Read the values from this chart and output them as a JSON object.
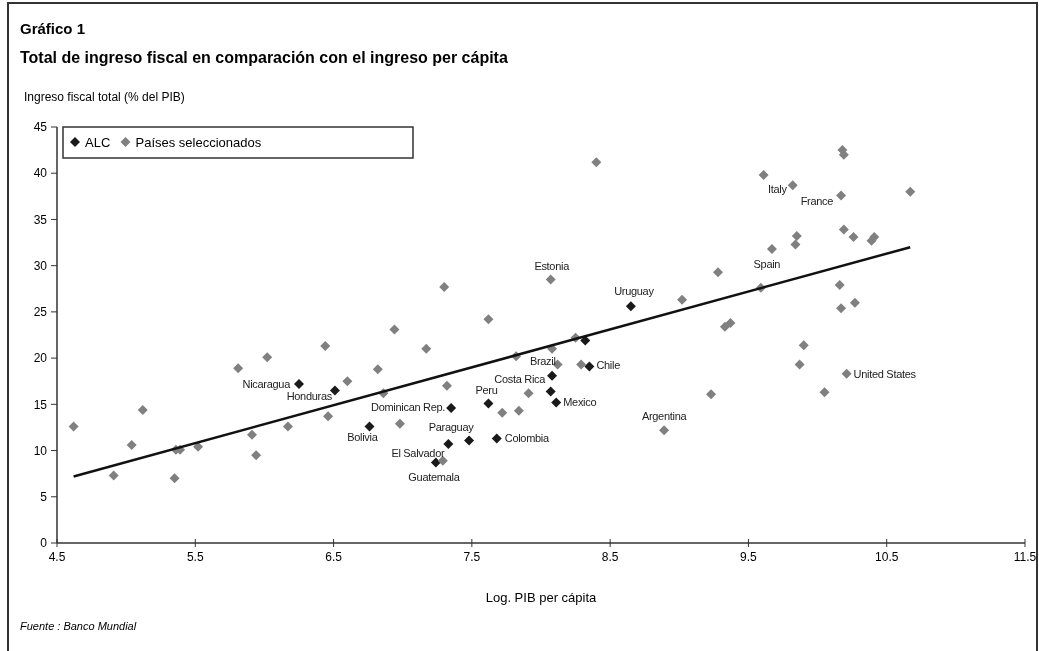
{
  "chart_data": {
    "type": "scatter",
    "title": "Gráfico 1",
    "subtitle": "Total de ingreso fiscal en comparación con el ingreso per cápita",
    "xlabel": "Log. PIB per cápita",
    "ylabel": "Ingreso fiscal total  (% del PIB)",
    "xlim": [
      4.5,
      11.5
    ],
    "xticks": [
      4.5,
      5.5,
      6.5,
      7.5,
      8.5,
      9.5,
      10.5,
      11.5
    ],
    "ylim": [
      0,
      45
    ],
    "yticks": [
      0,
      5,
      10,
      15,
      20,
      25,
      30,
      35,
      40,
      45
    ],
    "grid": false,
    "legend": "top left",
    "marker": "diamond",
    "series": [
      {
        "name": "ALC",
        "color": "#1a1a1a",
        "x": [
          6.25,
          6.51,
          6.76,
          7.35,
          7.33,
          7.48,
          7.24,
          7.62,
          7.68,
          8.08,
          8.07,
          8.11,
          8.32,
          8.35,
          8.65
        ],
        "values": [
          17.2,
          16.5,
          12.6,
          14.6,
          10.7,
          11.1,
          8.7,
          15.1,
          11.3,
          18.1,
          16.4,
          15.2,
          21.9,
          19.1,
          25.6
        ]
      },
      {
        "name": "Países seleccionados",
        "color": "#808080",
        "x": [
          4.62,
          4.91,
          5.04,
          5.12,
          5.35,
          5.36,
          5.39,
          5.52,
          5.81,
          5.91,
          5.94,
          6.02,
          6.17,
          6.44,
          6.46,
          6.6,
          6.82,
          6.86,
          6.94,
          6.98,
          7.17,
          7.29,
          7.3,
          7.32,
          7.62,
          7.72,
          7.82,
          7.84,
          7.91,
          8.07,
          8.08,
          8.12,
          8.25,
          8.29,
          8.4,
          8.89,
          9.02,
          9.23,
          9.28,
          9.33,
          9.37,
          9.59,
          9.61,
          9.67,
          9.82,
          9.84,
          9.85,
          9.87,
          9.9,
          10.05,
          10.16,
          10.17,
          10.17,
          10.18,
          10.19,
          10.19,
          10.21,
          10.26,
          10.27,
          10.39,
          10.41,
          10.67
        ],
        "values": [
          12.6,
          7.3,
          10.6,
          14.4,
          7.0,
          10.1,
          10.1,
          10.4,
          18.9,
          11.7,
          9.5,
          20.1,
          12.6,
          21.3,
          13.7,
          17.5,
          18.8,
          16.2,
          23.1,
          12.9,
          21.0,
          8.9,
          27.7,
          17.0,
          24.2,
          14.1,
          20.2,
          14.3,
          16.2,
          28.5,
          21.0,
          19.3,
          22.2,
          19.3,
          41.2,
          12.2,
          26.3,
          16.1,
          29.3,
          23.4,
          23.8,
          27.6,
          39.8,
          31.8,
          38.7,
          32.3,
          33.2,
          19.3,
          21.4,
          16.3,
          27.9,
          25.4,
          37.6,
          42.5,
          42.0,
          33.9,
          18.3,
          33.1,
          26.0,
          32.7,
          33.1,
          38.0
        ]
      },
      {
        "type": "line",
        "color": "#111111",
        "line_style": "solid",
        "marker": "none",
        "x": [
          4.62,
          10.67
        ],
        "values": [
          7.2,
          32.0
        ]
      }
    ],
    "annotations": [
      {
        "text": "Nicaragua",
        "x": 6.25,
        "y": 17.2
      },
      {
        "text": "Honduras",
        "x": 6.51,
        "y": 16.5
      },
      {
        "text": "Bolivia",
        "x": 6.76,
        "y": 12.6
      },
      {
        "text": "Dominican Rep.",
        "x": 7.35,
        "y": 14.6
      },
      {
        "text": "El Salvador",
        "x": 7.33,
        "y": 10.7
      },
      {
        "text": "Paraguay",
        "x": 7.48,
        "y": 11.1
      },
      {
        "text": "Guatemala",
        "x": 7.24,
        "y": 8.7
      },
      {
        "text": "Peru",
        "x": 7.62,
        "y": 15.1
      },
      {
        "text": "Colombia",
        "x": 7.68,
        "y": 11.3
      },
      {
        "text": "Costa Rica",
        "x": 8.08,
        "y": 18.1
      },
      {
        "text": "Brazil",
        "x": 8.12,
        "y": 19.3
      },
      {
        "text": "Mexico",
        "x": 8.11,
        "y": 15.2
      },
      {
        "text": "Chile",
        "x": 8.35,
        "y": 19.1
      },
      {
        "text": "Uruguay",
        "x": 8.65,
        "y": 25.6
      },
      {
        "text": "Estonia",
        "x": 8.07,
        "y": 28.5
      },
      {
        "text": "Argentina",
        "x": 8.89,
        "y": 12.2
      },
      {
        "text": "Spain",
        "x": 9.59,
        "y": 27.6
      },
      {
        "text": "Italy",
        "x": 9.82,
        "y": 38.7
      },
      {
        "text": "France",
        "x": 10.17,
        "y": 37.6
      },
      {
        "text": "United States",
        "x": 10.21,
        "y": 18.3
      },
      "Fuente : Banco Mundial"
    ]
  }
}
